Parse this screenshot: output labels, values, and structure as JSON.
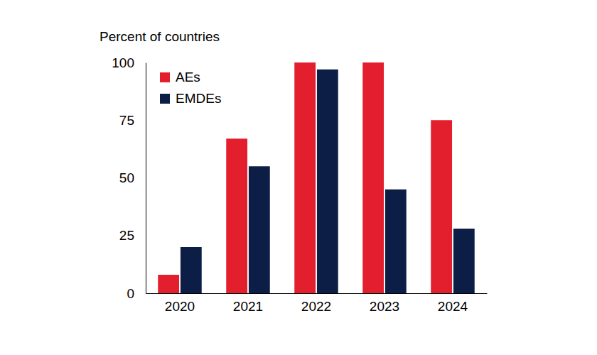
{
  "chart_data": {
    "type": "bar",
    "y_label": "Percent of countries",
    "categories": [
      "2020",
      "2021",
      "2022",
      "2023",
      "2024"
    ],
    "series": [
      {
        "name": "AEs",
        "color": "#e31e2d",
        "values": [
          8,
          67,
          100,
          100,
          75
        ]
      },
      {
        "name": "EMDEs",
        "color": "#0c1e45",
        "values": [
          20,
          55,
          97,
          45,
          28
        ]
      }
    ],
    "ylim": [
      0,
      100
    ],
    "yticks": [
      0,
      25,
      50,
      75,
      100
    ],
    "grid": false,
    "legend": "top-left"
  }
}
